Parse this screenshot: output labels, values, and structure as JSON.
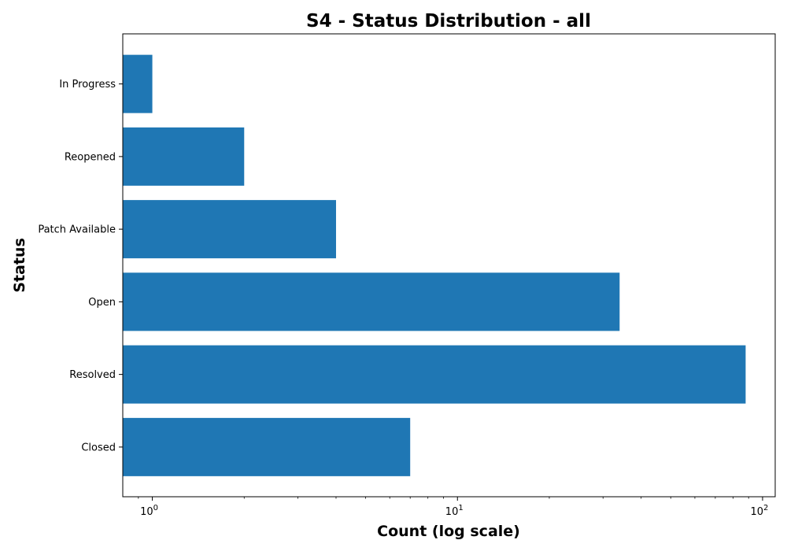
{
  "chart_data": {
    "type": "bar",
    "orientation": "horizontal",
    "title": "S4 - Status Distribution - all",
    "xlabel": "Count (log scale)",
    "ylabel": "Status",
    "x_scale": "log",
    "xlim": [
      0.8,
      110
    ],
    "categories": [
      "Closed",
      "Resolved",
      "Open",
      "Patch Available",
      "Reopened",
      "In Progress"
    ],
    "values": [
      7,
      88,
      34,
      4,
      2,
      1
    ],
    "x_ticks": [
      {
        "base": "10",
        "exp": "0",
        "value": 1
      },
      {
        "base": "10",
        "exp": "1",
        "value": 10
      },
      {
        "base": "10",
        "exp": "2",
        "value": 100
      }
    ],
    "grid": false,
    "bar_color": "#1f77b4"
  }
}
